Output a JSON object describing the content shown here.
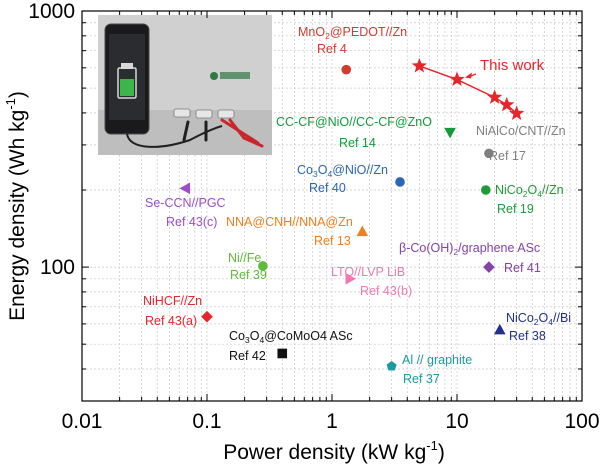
{
  "chart_data": {
    "type": "scatter",
    "xlabel": {
      "main": "Power density (kW kg",
      "sup": "-1",
      "tail": ")"
    },
    "ylabel": {
      "main": "Energy density (Wh kg",
      "sup": "-1",
      "tail": ")"
    },
    "xscale": "log",
    "yscale": "log",
    "xlim": [
      0.01,
      100
    ],
    "ylim": [
      30,
      1000
    ],
    "xticks": [
      {
        "v": 0.01,
        "label": "0.01"
      },
      {
        "v": 0.1,
        "label": "0.1"
      },
      {
        "v": 1,
        "label": "1"
      },
      {
        "v": 10,
        "label": "10"
      },
      {
        "v": 100,
        "label": "100"
      }
    ],
    "yticks": [
      {
        "v": 100,
        "label": "100"
      },
      {
        "v": 1000,
        "label": "1000"
      }
    ],
    "grid": true,
    "this_work": {
      "label": "This work",
      "color": "#e8252b",
      "points": [
        {
          "x": 5,
          "y": 610
        },
        {
          "x": 10,
          "y": 540
        },
        {
          "x": 20,
          "y": 460
        },
        {
          "x": 25,
          "y": 430
        },
        {
          "x": 30,
          "y": 398
        }
      ]
    },
    "points": [
      {
        "x": 1.3,
        "y": 590,
        "marker": "circle",
        "color": "#d23b30",
        "label": [
          "MnO|2|@PEDOT//Zn",
          "Ref 4"
        ]
      },
      {
        "x": 8.8,
        "y": 335,
        "marker": "triangle-down",
        "color": "#139a3a",
        "label": [
          "CC-CF@NiO//CC-CF@ZnO",
          "Ref 14"
        ]
      },
      {
        "x": 18,
        "y": 278,
        "marker": "circle",
        "color": "#7f7f7f",
        "label": [
          "NiAlCo/CNT//Zn",
          "Ref 17"
        ]
      },
      {
        "x": 3.5,
        "y": 215,
        "marker": "circle",
        "color": "#2a66b2",
        "label": [
          "Co|3|O|4|@NiO//Zn",
          "Ref 40"
        ]
      },
      {
        "x": 17,
        "y": 200,
        "marker": "circle",
        "color": "#1f9a3a",
        "label": [
          "NiCo|2|O|4|//Zn",
          "Ref 19"
        ]
      },
      {
        "x": 0.067,
        "y": 203,
        "marker": "triangle-left",
        "color": "#9a4fc8",
        "label": [
          "Se-CCN//PGC",
          "Ref 43(c)"
        ]
      },
      {
        "x": 1.75,
        "y": 138,
        "marker": "triangle-up",
        "color": "#f07f1f",
        "label": [
          "NNA@CNH//NNA@Zn",
          "Ref 13"
        ]
      },
      {
        "x": 0.28,
        "y": 101,
        "marker": "circle",
        "color": "#5fbb3c",
        "label": [
          "Ni//Fe",
          "Ref 39"
        ]
      },
      {
        "x": 1.4,
        "y": 90,
        "marker": "triangle-right",
        "color": "#ef7ab0",
        "label": [
          "LTO//LVP LiB",
          "Ref 43(b)"
        ]
      },
      {
        "x": 18,
        "y": 100,
        "marker": "diamond",
        "color": "#8443a8",
        "label": [
          "β-Co(OH)|2|/graphene ASc",
          "Ref 41"
        ]
      },
      {
        "x": 0.1,
        "y": 64,
        "marker": "diamond",
        "color": "#e8252b",
        "label": [
          "NiHCF//Zn",
          "Ref 43(a)"
        ]
      },
      {
        "x": 0.4,
        "y": 46,
        "marker": "square",
        "color": "#111111",
        "label": [
          "Co|3|O|4|@CoMoO4 ASc",
          "Ref 42"
        ]
      },
      {
        "x": 3,
        "y": 41,
        "marker": "pentagon",
        "color": "#1b9aa2",
        "label": [
          "Al // graphite",
          "Ref 37"
        ]
      },
      {
        "x": 22,
        "y": 57,
        "marker": "triangle-up",
        "color": "#22308d",
        "label": [
          "NiCo|2|O|4|//Bi",
          "Ref 38"
        ]
      }
    ]
  }
}
